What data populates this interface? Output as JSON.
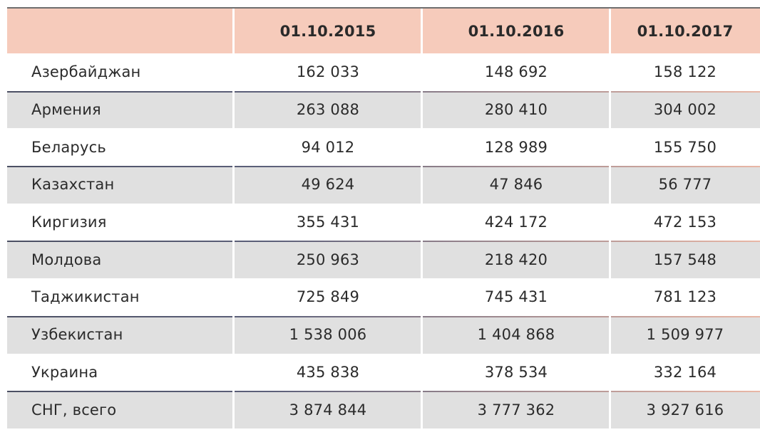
{
  "table": {
    "headers": [
      "",
      "01.10.2015",
      "01.10.2016",
      "01.10.2017"
    ],
    "rows": [
      {
        "country": "Азербайджан",
        "v2015": "162 033",
        "v2016": "148 692",
        "v2017": "158 122"
      },
      {
        "country": "Армения",
        "v2015": "263 088",
        "v2016": "280 410",
        "v2017": "304 002"
      },
      {
        "country": "Беларусь",
        "v2015": "94 012",
        "v2016": "128 989",
        "v2017": "155 750"
      },
      {
        "country": "Казахстан",
        "v2015": "49 624",
        "v2016": "47 846",
        "v2017": "56 777"
      },
      {
        "country": "Киргизия",
        "v2015": "355 431",
        "v2016": "424 172",
        "v2017": "472 153"
      },
      {
        "country": "Молдова",
        "v2015": "250 963",
        "v2016": "218 420",
        "v2017": "157 548"
      },
      {
        "country": "Таджикистан",
        "v2015": "725 849",
        "v2016": "745 431",
        "v2017": "781 123"
      },
      {
        "country": "Узбекистан",
        "v2015": "1 538 006",
        "v2016": "1 404 868",
        "v2017": "1 509 977"
      },
      {
        "country": "Украина",
        "v2015": "435 838",
        "v2016": "378 534",
        "v2017": "332 164"
      },
      {
        "country": "СНГ, всего",
        "v2015": "3 874 844",
        "v2016": "3 777 362",
        "v2017": "3 927 616"
      }
    ]
  },
  "colors": {
    "header_bg": "#f6cbbb",
    "shaded_bg": "#e0e0e0"
  }
}
